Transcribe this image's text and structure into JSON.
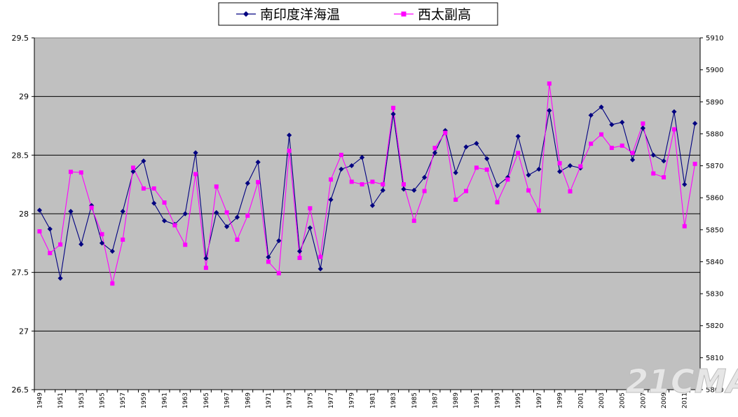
{
  "chart_data": {
    "type": "line",
    "legend": {
      "placement": "top-center",
      "entries": [
        "南印度洋海温",
        "西太副高"
      ]
    },
    "colors": {
      "plot_background": "#c0c0c0",
      "series1": "#000080",
      "series2": "#ff00ff",
      "grid": "#000000"
    },
    "grid": true,
    "x": {
      "start_year": 1949,
      "end_year": 2012,
      "tick_labels": [
        "1949",
        "1951",
        "1953",
        "1955",
        "1957",
        "1959",
        "1961",
        "1963",
        "1965",
        "1967",
        "1969",
        "1971",
        "1973",
        "1975",
        "1977",
        "1979",
        "1981",
        "1983",
        "1985",
        "1987",
        "1989",
        "1991",
        "1993",
        "1995",
        "1997",
        "1999",
        "2001",
        "2003",
        "2005",
        "2007",
        "2009",
        "2011"
      ]
    },
    "y_left": {
      "ylim": [
        26.5,
        29.5
      ],
      "tick_labels": [
        "26.5",
        "27",
        "27.5",
        "28",
        "28.5",
        "29",
        "29.5"
      ],
      "tick_values": [
        26.5,
        27,
        27.5,
        28,
        28.5,
        29,
        29.5
      ]
    },
    "y_right": {
      "ylim": [
        5800,
        5910
      ],
      "tick_labels": [
        "5800",
        "5810",
        "5820",
        "5830",
        "5840",
        "5850",
        "5860",
        "5870",
        "5880",
        "5890",
        "5900",
        "5910"
      ],
      "tick_values": [
        5800,
        5810,
        5820,
        5830,
        5840,
        5850,
        5860,
        5870,
        5880,
        5890,
        5900,
        5910
      ]
    },
    "series": [
      {
        "name": "南印度洋海温",
        "axis": "left",
        "marker": "diamond",
        "values": [
          28.03,
          27.87,
          27.45,
          28.02,
          27.74,
          28.07,
          27.75,
          27.68,
          28.02,
          28.36,
          28.45,
          28.09,
          27.94,
          27.91,
          28.0,
          28.52,
          27.62,
          28.01,
          27.89,
          27.97,
          28.26,
          28.44,
          27.63,
          27.77,
          28.67,
          27.68,
          27.88,
          27.53,
          28.12,
          28.38,
          28.41,
          28.48,
          28.07,
          28.2,
          28.85,
          28.21,
          28.2,
          28.31,
          28.52,
          28.71,
          28.35,
          28.57,
          28.6,
          28.47,
          28.24,
          28.31,
          28.66,
          28.33,
          28.38,
          28.88,
          28.36,
          28.41,
          28.39,
          28.84,
          28.91,
          28.76,
          28.78,
          28.46,
          28.73,
          28.5,
          28.45,
          28.87,
          28.25,
          28.77
        ]
      },
      {
        "name": "西太副高",
        "axis": "right",
        "marker": "square",
        "values": [
          5849.5,
          5842.7,
          5845.4,
          5868.1,
          5867.9,
          5856.9,
          5848.6,
          5833.2,
          5846.9,
          5869.4,
          5862.9,
          5862.9,
          5858.5,
          5851.4,
          5845.3,
          5867.4,
          5838.1,
          5863.5,
          5855.4,
          5846.9,
          5854.4,
          5864.9,
          5840.0,
          5836.4,
          5874.7,
          5841.2,
          5856.7,
          5841.5,
          5865.7,
          5873.4,
          5865.0,
          5864.2,
          5865.0,
          5864.2,
          5888.1,
          5864.2,
          5852.8,
          5862.1,
          5875.6,
          5880.3,
          5859.4,
          5862.1,
          5869.4,
          5868.8,
          5858.6,
          5865.7,
          5874.0,
          5862.3,
          5856.0,
          5895.7,
          5870.8,
          5862.0,
          5869.8,
          5876.9,
          5879.8,
          5875.6,
          5876.3,
          5874.0,
          5883.2,
          5867.6,
          5866.4,
          5881.4,
          5851.1,
          5870.6
        ]
      }
    ]
  }
}
